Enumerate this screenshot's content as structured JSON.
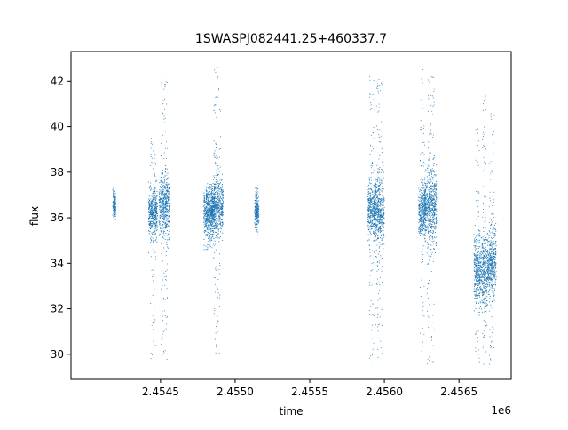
{
  "chart_data": {
    "type": "scatter",
    "title": "1SWASPJ082441.25+460337.7",
    "xlabel": "time",
    "ylabel": "flux",
    "x_offset_label": "1e6",
    "xlim": [
      2.4539,
      2.45685
    ],
    "ylim": [
      28.9,
      43.3
    ],
    "x_ticks": [
      2.4545,
      2.455,
      2.4555,
      2.456,
      2.4565
    ],
    "x_tick_labels": [
      "2.4545",
      "2.4550",
      "2.4555",
      "2.4560",
      "2.4565"
    ],
    "y_ticks": [
      30,
      32,
      34,
      36,
      38,
      40,
      42
    ],
    "y_tick_labels": [
      "30",
      "32",
      "34",
      "36",
      "38",
      "40",
      "42"
    ],
    "grid": false,
    "marker_color": "#1f77b4",
    "clusters": [
      {
        "x_start": 2.45418,
        "x_end": 2.4542,
        "median": 36.6,
        "core_spread": 0.3,
        "max": 37.4,
        "min": 35.9
      },
      {
        "x_start": 2.45442,
        "x_end": 2.45448,
        "median": 36.2,
        "core_spread": 0.5,
        "max": 39.5,
        "min": 29.7
      },
      {
        "x_start": 2.45449,
        "x_end": 2.45456,
        "median": 36.5,
        "core_spread": 0.7,
        "max": 42.6,
        "min": 29.7
      },
      {
        "x_start": 2.45479,
        "x_end": 2.45486,
        "median": 36.2,
        "core_spread": 0.5,
        "max": 37.5,
        "min": 34.6
      },
      {
        "x_start": 2.45484,
        "x_end": 2.45492,
        "median": 36.4,
        "core_spread": 0.6,
        "max": 42.6,
        "min": 29.9
      },
      {
        "x_start": 2.45513,
        "x_end": 2.45516,
        "median": 36.3,
        "core_spread": 0.4,
        "max": 37.3,
        "min": 35.2
      },
      {
        "x_start": 2.45589,
        "x_end": 2.45594,
        "median": 36.3,
        "core_spread": 0.6,
        "max": 42.6,
        "min": 29.6
      },
      {
        "x_start": 2.45593,
        "x_end": 2.456,
        "median": 36.3,
        "core_spread": 0.8,
        "max": 42.2,
        "min": 29.5
      },
      {
        "x_start": 2.45623,
        "x_end": 2.45628,
        "median": 36.3,
        "core_spread": 0.6,
        "max": 42.6,
        "min": 29.6
      },
      {
        "x_start": 2.45627,
        "x_end": 2.45635,
        "median": 36.5,
        "core_spread": 0.8,
        "max": 42.4,
        "min": 29.5
      },
      {
        "x_start": 2.4566,
        "x_end": 2.45665,
        "median": 33.7,
        "core_spread": 0.7,
        "max": 40.0,
        "min": 29.6
      },
      {
        "x_start": 2.45665,
        "x_end": 2.45669,
        "median": 33.6,
        "core_spread": 0.8,
        "max": 41.6,
        "min": 29.5
      },
      {
        "x_start": 2.45669,
        "x_end": 2.45675,
        "median": 34.0,
        "core_spread": 0.7,
        "max": 40.8,
        "min": 29.5
      }
    ]
  }
}
